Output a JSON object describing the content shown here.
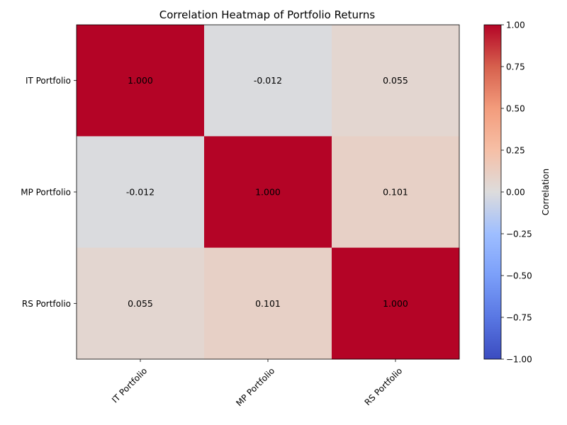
{
  "chart_data": {
    "type": "heatmap",
    "title": "Correlation Heatmap of Portfolio Returns",
    "xlabel": "",
    "ylabel": "",
    "x_categories": [
      "IT Portfolio",
      "MP Portfolio",
      "RS Portfolio"
    ],
    "y_categories": [
      "IT Portfolio",
      "MP Portfolio",
      "RS Portfolio"
    ],
    "values": [
      [
        1.0,
        -0.012,
        0.055
      ],
      [
        -0.012,
        1.0,
        0.101
      ],
      [
        0.055,
        0.101,
        1.0
      ]
    ],
    "value_labels": [
      [
        "1.000",
        "-0.012",
        "0.055"
      ],
      [
        "-0.012",
        "1.000",
        "0.101"
      ],
      [
        "0.055",
        "0.101",
        "1.000"
      ]
    ],
    "colormap": "coolwarm",
    "vmin": -1.0,
    "vmax": 1.0,
    "x_tick_rotation_deg": 45,
    "grid": false,
    "colorbar": {
      "label": "Correlation",
      "position": "right",
      "ticks": [
        1.0,
        0.75,
        0.5,
        0.25,
        0.0,
        -0.25,
        -0.5,
        -0.75,
        -1.0
      ],
      "tick_labels": [
        "1.00",
        "0.75",
        "0.50",
        "0.25",
        "0.00",
        "−0.25",
        "−0.50",
        "−0.75",
        "−1.00"
      ]
    }
  }
}
